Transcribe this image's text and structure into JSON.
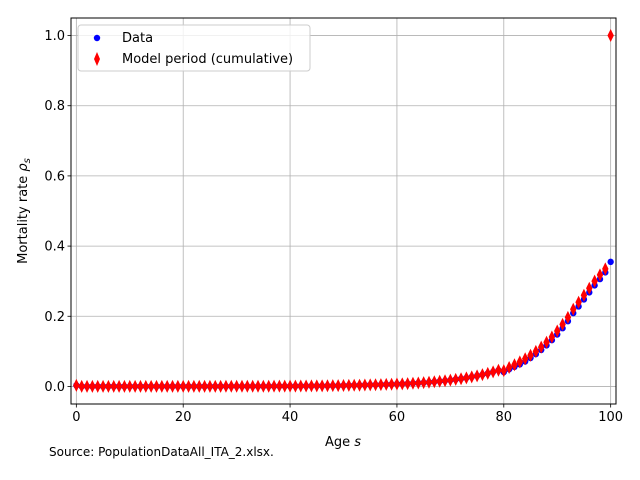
{
  "chart_data": {
    "type": "scatter",
    "title": "",
    "xlabel": "Age",
    "xlabel_symbol": "s",
    "ylabel": "Mortality rate",
    "ylabel_symbol": "ρ",
    "ylabel_subscript": "s",
    "xlim": [
      -1,
      101
    ],
    "ylim": [
      -0.05,
      1.05
    ],
    "xticks": [
      0,
      20,
      40,
      60,
      80,
      100
    ],
    "yticks": [
      0.0,
      0.2,
      0.4,
      0.6,
      0.8,
      1.0
    ],
    "xtick_labels": [
      "0",
      "20",
      "40",
      "60",
      "80",
      "100"
    ],
    "ytick_labels": [
      "0.0",
      "0.2",
      "0.4",
      "0.6",
      "0.8",
      "1.0"
    ],
    "grid": true,
    "legend_position": "top-left",
    "series": [
      {
        "name": "Data",
        "marker": "circle",
        "color": "#0000ff",
        "x": [
          0,
          1,
          2,
          3,
          4,
          5,
          6,
          7,
          8,
          9,
          10,
          11,
          12,
          13,
          14,
          15,
          16,
          17,
          18,
          19,
          20,
          21,
          22,
          23,
          24,
          25,
          26,
          27,
          28,
          29,
          30,
          31,
          32,
          33,
          34,
          35,
          36,
          37,
          38,
          39,
          40,
          41,
          42,
          43,
          44,
          45,
          46,
          47,
          48,
          49,
          50,
          51,
          52,
          53,
          54,
          55,
          56,
          57,
          58,
          59,
          60,
          61,
          62,
          63,
          64,
          65,
          66,
          67,
          68,
          69,
          70,
          71,
          72,
          73,
          74,
          75,
          76,
          77,
          78,
          79,
          80,
          81,
          82,
          83,
          84,
          85,
          86,
          87,
          88,
          89,
          90,
          91,
          92,
          93,
          94,
          95,
          96,
          97,
          98,
          99,
          100
        ],
        "y": [
          0.003,
          0.0003,
          0.0002,
          0.0001,
          0.0001,
          0.0001,
          0.0001,
          0.0001,
          0.0001,
          0.0001,
          0.0001,
          0.0001,
          0.0001,
          0.0001,
          0.0002,
          0.0002,
          0.0003,
          0.0003,
          0.0004,
          0.0004,
          0.0004,
          0.0004,
          0.0004,
          0.0004,
          0.0004,
          0.0004,
          0.0004,
          0.0004,
          0.0005,
          0.0005,
          0.0005,
          0.0005,
          0.0006,
          0.0006,
          0.0006,
          0.0007,
          0.0007,
          0.0008,
          0.0009,
          0.0009,
          0.001,
          0.0011,
          0.0012,
          0.0014,
          0.0015,
          0.0017,
          0.0018,
          0.002,
          0.0022,
          0.0024,
          0.0027,
          0.003,
          0.0033,
          0.0036,
          0.004,
          0.0044,
          0.0048,
          0.0053,
          0.0058,
          0.0063,
          0.0069,
          0.0075,
          0.0082,
          0.009,
          0.0099,
          0.0109,
          0.0121,
          0.0134,
          0.0148,
          0.0163,
          0.018,
          0.02,
          0.0221,
          0.0245,
          0.0272,
          0.0302,
          0.0336,
          0.0373,
          0.0415,
          0.0461,
          0.041,
          0.049,
          0.056,
          0.063,
          0.071,
          0.081,
          0.092,
          0.104,
          0.117,
          0.132,
          0.148,
          0.166,
          0.186,
          0.209,
          0.228,
          0.248,
          0.268,
          0.288,
          0.306,
          0.325,
          0.355
        ]
      },
      {
        "name": "Model period (cumulative)",
        "marker": "thin_diamond",
        "color": "#ff0000",
        "x": [
          0,
          1,
          2,
          3,
          4,
          5,
          6,
          7,
          8,
          9,
          10,
          11,
          12,
          13,
          14,
          15,
          16,
          17,
          18,
          19,
          20,
          21,
          22,
          23,
          24,
          25,
          26,
          27,
          28,
          29,
          30,
          31,
          32,
          33,
          34,
          35,
          36,
          37,
          38,
          39,
          40,
          41,
          42,
          43,
          44,
          45,
          46,
          47,
          48,
          49,
          50,
          51,
          52,
          53,
          54,
          55,
          56,
          57,
          58,
          59,
          60,
          61,
          62,
          63,
          64,
          65,
          66,
          67,
          68,
          69,
          70,
          71,
          72,
          73,
          74,
          75,
          76,
          77,
          78,
          79,
          80,
          81,
          82,
          83,
          84,
          85,
          86,
          87,
          88,
          89,
          90,
          91,
          92,
          93,
          94,
          95,
          96,
          97,
          98,
          99,
          100
        ],
        "y": [
          0.003,
          0.0003,
          0.0002,
          0.0001,
          0.0001,
          0.0001,
          0.0001,
          0.0001,
          0.0001,
          0.0001,
          0.0001,
          0.0001,
          0.0001,
          0.0001,
          0.0002,
          0.0002,
          0.0003,
          0.0003,
          0.0004,
          0.0004,
          0.0004,
          0.0004,
          0.0004,
          0.0004,
          0.0004,
          0.0004,
          0.0004,
          0.0004,
          0.0005,
          0.0005,
          0.0005,
          0.0005,
          0.0006,
          0.0006,
          0.0006,
          0.0007,
          0.0007,
          0.0008,
          0.0009,
          0.0009,
          0.001,
          0.0011,
          0.0012,
          0.0014,
          0.0015,
          0.0017,
          0.0018,
          0.002,
          0.0022,
          0.0024,
          0.0027,
          0.003,
          0.0033,
          0.0036,
          0.004,
          0.0044,
          0.0048,
          0.0053,
          0.0058,
          0.0063,
          0.0069,
          0.0075,
          0.0082,
          0.009,
          0.0099,
          0.0109,
          0.0121,
          0.0134,
          0.0148,
          0.0163,
          0.018,
          0.02,
          0.0221,
          0.0245,
          0.0272,
          0.0302,
          0.0336,
          0.0373,
          0.0415,
          0.0461,
          0.045,
          0.054,
          0.062,
          0.07,
          0.079,
          0.089,
          0.1,
          0.112,
          0.126,
          0.141,
          0.158,
          0.177,
          0.197,
          0.22,
          0.24,
          0.26,
          0.28,
          0.3,
          0.318,
          0.335,
          1.0
        ]
      }
    ],
    "source_note": "Source: PopulationDataAll_ITA_2.xlsx."
  }
}
